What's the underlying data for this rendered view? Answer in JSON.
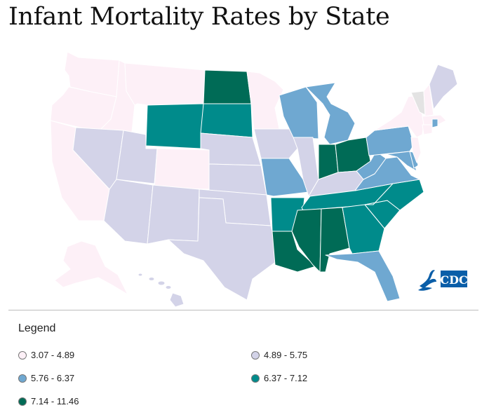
{
  "title": "Infant Mortality Rates by State",
  "logo_text": "CDC",
  "legend": {
    "title": "Legend",
    "items": [
      {
        "label": "3.07 - 4.89",
        "color": "#fdf0f7"
      },
      {
        "label": "4.89 - 5.75",
        "color": "#d3d3e8"
      },
      {
        "label": "5.76 - 6.37",
        "color": "#6fa8d1"
      },
      {
        "label": "6.37 - 7.12",
        "color": "#008b8b"
      },
      {
        "label": "7.14 - 11.46",
        "color": "#006b56"
      }
    ]
  },
  "no_data_color": "#e3e3e3",
  "chart_data": {
    "type": "choropleth",
    "title": "Infant Mortality Rates by State",
    "legend_placement": "bottom",
    "classes": [
      {
        "range": [
          3.07,
          4.89
        ],
        "color": "#fdf0f7"
      },
      {
        "range": [
          4.89,
          5.75
        ],
        "color": "#d3d3e8"
      },
      {
        "range": [
          5.76,
          6.37
        ],
        "color": "#6fa8d1"
      },
      {
        "range": [
          6.37,
          7.12
        ],
        "color": "#008b8b"
      },
      {
        "range": [
          7.14,
          11.46
        ],
        "color": "#006b56"
      }
    ],
    "states": {
      "WA": 0,
      "OR": 0,
      "CA": 0,
      "ID": 0,
      "MT": 0,
      "CO": 0,
      "MN": 0,
      "NY": 0,
      "NJ": 0,
      "MA": 0,
      "CT": 0,
      "NH": 0,
      "AK": 0,
      "HI": 1,
      "NV": 1,
      "UT": 1,
      "AZ": 1,
      "NM": 1,
      "NE": 1,
      "KS": 1,
      "OK": 1,
      "TX": 1,
      "IA": 1,
      "IL": 1,
      "KY": 1,
      "ME": 1,
      "WI": 2,
      "MI": 2,
      "MO": 2,
      "PA": 2,
      "WV": 2,
      "VA": 2,
      "MD": 2,
      "DE": 2,
      "FL": 2,
      "RI": 2,
      "WY": 3,
      "SD": 3,
      "AR": 3,
      "TN": 3,
      "NC": 3,
      "SC": 3,
      "GA": 3,
      "ND": 4,
      "IN": 4,
      "OH": 4,
      "LA": 4,
      "MS": 4,
      "AL": 4,
      "VT": null
    }
  }
}
